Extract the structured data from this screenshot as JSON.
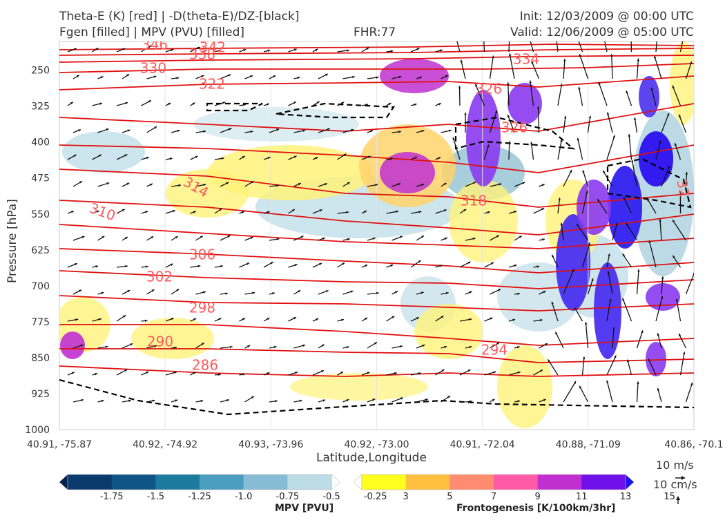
{
  "header": {
    "title_left_1": "Theta-E (K) [red] | -D(theta-E)/DZ-[black]",
    "title_left_2": "Fgen [filled] | MPV (PVU) [filled]",
    "fhr": "FHR:77",
    "init": "Init: 12/03/2009 @ 00:00 UTC",
    "valid": "Valid: 12/06/2009 @ 05:00 UTC"
  },
  "chart_data": {
    "type": "contour",
    "ylabel": "Pressure [hPa]",
    "xlabel": "Latitude,Longitude",
    "y_ticks": [
      250,
      325,
      400,
      475,
      550,
      625,
      700,
      775,
      850,
      925,
      1000
    ],
    "ylim": [
      1000,
      190
    ],
    "x_ticks": [
      "40.91, -75.87",
      "40.92, -74.92",
      "40.93, -73.96",
      "40.92, -73.00",
      "40.91, -72.04",
      "40.88, -71.09",
      "40.86, -70.1"
    ],
    "theta_e_labels": [
      "346",
      "342",
      "338",
      "334",
      "330",
      "326",
      "326",
      "322",
      "318",
      "314",
      "310",
      "306",
      "302",
      "298",
      "294",
      "290",
      "286",
      "32"
    ],
    "mpv_colorbar": {
      "label": "MPV [PVU]",
      "ticks": [
        "-1.75",
        "-1.5",
        "-1.25",
        "-1.0",
        "-0.75",
        "-0.5",
        "-0.25"
      ],
      "colors": [
        "#08214f",
        "#0b3a6d",
        "#0e5585",
        "#1b7a9e",
        "#4b9ec0",
        "#87bdd4",
        "#bcdce6",
        "#ffffff"
      ]
    },
    "fgen_colorbar": {
      "label": "Frontogenesis [K/100km/3hr]",
      "ticks": [
        "3",
        "5",
        "7",
        "9",
        "11",
        "13",
        "15"
      ],
      "colors": [
        "#ffffff",
        "#ffff20",
        "#ffc040",
        "#ff8c70",
        "#ff5aa8",
        "#c030d0",
        "#7010e8",
        "#2010f0"
      ]
    },
    "wind_key": {
      "u_label": "10 m/s",
      "w_label": "10 cm/s"
    }
  }
}
